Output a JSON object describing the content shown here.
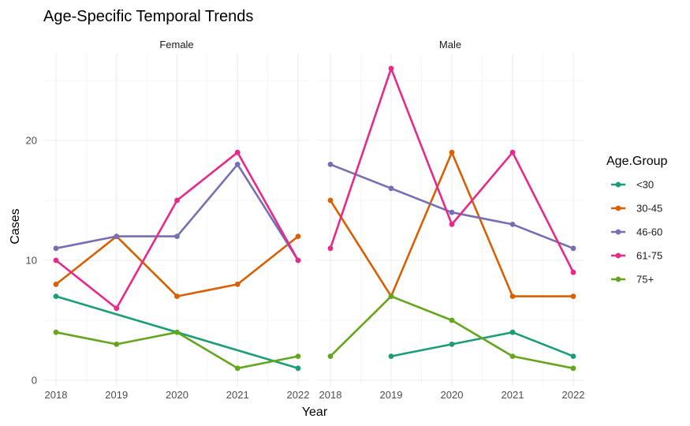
{
  "chart_data": {
    "type": "line",
    "title": "Age-Specific Temporal Trends",
    "xlabel": "Year",
    "ylabel": "Cases",
    "x": [
      2018,
      2019,
      2020,
      2021,
      2022
    ],
    "ylim": [
      0,
      26
    ],
    "yticks": [
      0,
      10,
      20
    ],
    "grid": true,
    "legend": {
      "title": "Age.Group",
      "position": "right"
    },
    "series_colors": {
      "<30": "#1b9e77",
      "30-45": "#d95f02",
      "46-60": "#7570b3",
      "61-75": "#e7298a",
      "75+": "#66a61e"
    },
    "panels": [
      {
        "label": "Female",
        "series": [
          {
            "name": "<30",
            "points": [
              [
                2018,
                7
              ],
              [
                2022,
                1
              ]
            ]
          },
          {
            "name": "30-45",
            "points": [
              [
                2018,
                8
              ],
              [
                2019,
                12
              ],
              [
                2020,
                7
              ],
              [
                2021,
                8
              ],
              [
                2022,
                12
              ]
            ]
          },
          {
            "name": "46-60",
            "points": [
              [
                2018,
                11
              ],
              [
                2019,
                12
              ],
              [
                2020,
                12
              ],
              [
                2021,
                18
              ],
              [
                2022,
                10
              ]
            ]
          },
          {
            "name": "61-75",
            "points": [
              [
                2018,
                10
              ],
              [
                2019,
                6
              ],
              [
                2020,
                15
              ],
              [
                2021,
                19
              ],
              [
                2022,
                10
              ]
            ]
          },
          {
            "name": "75+",
            "points": [
              [
                2018,
                4
              ],
              [
                2019,
                3
              ],
              [
                2020,
                4
              ],
              [
                2021,
                1
              ],
              [
                2022,
                2
              ]
            ]
          }
        ]
      },
      {
        "label": "Male",
        "series": [
          {
            "name": "<30",
            "points": [
              [
                2019,
                2
              ],
              [
                2020,
                3
              ],
              [
                2021,
                4
              ],
              [
                2022,
                2
              ]
            ]
          },
          {
            "name": "30-45",
            "points": [
              [
                2018,
                15
              ],
              [
                2019,
                7
              ],
              [
                2020,
                19
              ],
              [
                2021,
                7
              ],
              [
                2022,
                7
              ]
            ]
          },
          {
            "name": "46-60",
            "points": [
              [
                2018,
                18
              ],
              [
                2019,
                16
              ],
              [
                2020,
                14
              ],
              [
                2021,
                13
              ],
              [
                2022,
                11
              ]
            ]
          },
          {
            "name": "61-75",
            "points": [
              [
                2018,
                11
              ],
              [
                2019,
                26
              ],
              [
                2020,
                13
              ],
              [
                2021,
                19
              ],
              [
                2022,
                9
              ]
            ]
          },
          {
            "name": "75+",
            "points": [
              [
                2018,
                2
              ],
              [
                2019,
                7
              ],
              [
                2020,
                5
              ],
              [
                2021,
                2
              ],
              [
                2022,
                1
              ]
            ]
          }
        ]
      }
    ]
  }
}
